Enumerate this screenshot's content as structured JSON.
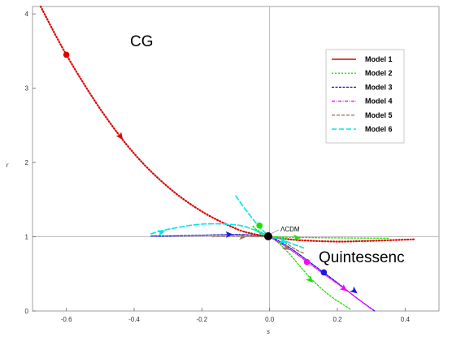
{
  "chart_data": {
    "type": "line",
    "xlabel": "s",
    "ylabel": "r",
    "xlim": [
      -0.7,
      0.5
    ],
    "ylim": [
      0,
      4.1
    ],
    "x_ticks": [
      "-0.6",
      "-0.4",
      "-0.2",
      "0.0",
      "0.2",
      "0.4"
    ],
    "x_tick_values": [
      -0.6,
      -0.4,
      -0.2,
      0.0,
      0.2,
      0.4
    ],
    "y_ticks": [
      "0",
      "1",
      "2",
      "3",
      "4"
    ],
    "y_tick_values": [
      0,
      1,
      2,
      3,
      4
    ],
    "reference_lines": {
      "x": 0,
      "y": 1
    },
    "grid": false,
    "legend_position": "top-right",
    "region_labels": [
      {
        "text": "CG",
        "x": -0.56,
        "y": 3.6
      },
      {
        "text": "Quintessenc",
        "x": 0.34,
        "y": 0.72
      }
    ],
    "fixed_point": {
      "label": "ΛCDM",
      "x": 0.0,
      "y": 1.0
    },
    "series": [
      {
        "name": "Model 1",
        "color": "#e00000",
        "dash": "1,2.5",
        "width": 2.2,
        "x": [
          -0.676,
          -0.6,
          -0.5,
          -0.4,
          -0.3,
          -0.2,
          -0.1,
          -0.05,
          0.0,
          0.05,
          0.1,
          0.2,
          0.3,
          0.43
        ],
        "y": [
          4.1,
          3.45,
          2.72,
          2.12,
          1.67,
          1.34,
          1.11,
          1.04,
          1.0,
          0.97,
          0.95,
          0.935,
          0.945,
          0.965
        ],
        "markers": [
          {
            "x": -0.6,
            "y": 3.45
          }
        ],
        "arrows": [
          {
            "x": -0.44,
            "y": 2.35
          }
        ]
      },
      {
        "name": "Model 2",
        "color": "#22dd00",
        "dash": "2,2",
        "width": 1.3,
        "x": [
          0.05,
          0.0,
          -0.03,
          -0.05,
          -0.04,
          0.0,
          0.03,
          0.06,
          0.09,
          0.13,
          0.18,
          0.24
        ],
        "y": [
          0.98,
          1.0,
          1.05,
          1.15,
          1.1,
          1.0,
          0.9,
          0.76,
          0.6,
          0.4,
          0.2,
          0.02
        ],
        "markers": [
          {
            "x": -0.03,
            "y": 1.15
          }
        ],
        "arrows": [
          {
            "x": 0.12,
            "y": 0.42
          }
        ],
        "tail": {
          "x": [
            0.0,
            0.1,
            0.2,
            0.35
          ],
          "y": [
            1.0,
            0.99,
            0.985,
            0.98
          ]
        },
        "tail_arrows": [
          {
            "x": 0.08,
            "y": 0.985
          }
        ]
      },
      {
        "name": "Model 3",
        "color": "#1a1adc",
        "dash": "3,1.5",
        "width": 1.3,
        "x": [
          -0.35,
          -0.3,
          -0.2,
          -0.1,
          -0.05,
          0.0,
          0.05,
          0.1,
          0.15,
          0.2,
          0.25,
          0.31
        ],
        "y": [
          1.01,
          1.01,
          1.02,
          1.03,
          1.02,
          1.0,
          0.88,
          0.72,
          0.55,
          0.38,
          0.2,
          0.0
        ],
        "markers": [
          {
            "x": 0.16,
            "y": 0.52
          }
        ],
        "arrows": [
          {
            "x": -0.12,
            "y": 1.03
          },
          {
            "x": 0.25,
            "y": 0.27
          }
        ]
      },
      {
        "name": "Model 4",
        "color": "#ff00ff",
        "dash": "4,1.5,1,1.5",
        "width": 1.3,
        "x": [
          0.0,
          0.05,
          0.1,
          0.15,
          0.2,
          0.25,
          0.3
        ],
        "y": [
          1.0,
          0.86,
          0.7,
          0.53,
          0.37,
          0.2,
          0.03
        ],
        "markers": [
          {
            "x": 0.11,
            "y": 0.66
          }
        ],
        "arrows": [
          {
            "x": 0.22,
            "y": 0.3
          }
        ]
      },
      {
        "name": "Model 5",
        "color": "#a0785a",
        "dash": "4,2",
        "width": 1.3,
        "x": [
          -0.17,
          -0.1,
          -0.05,
          0.0,
          0.03,
          0.06,
          0.08,
          0.1
        ],
        "y": [
          1.0,
          1.01,
          1.0,
          1.0,
          0.97,
          0.88,
          0.82,
          0.78
        ],
        "markers": [],
        "arrows": [
          {
            "x": -0.08,
            "y": 1.0
          },
          {
            "x": 0.05,
            "y": 0.85
          }
        ]
      },
      {
        "name": "Model 6",
        "color": "#00e6e6",
        "dash": "6,3",
        "width": 1.6,
        "x": [
          -0.35,
          -0.3,
          -0.2,
          -0.1,
          -0.05,
          0.0,
          0.03,
          0.07,
          0.1
        ],
        "y": [
          1.04,
          1.1,
          1.17,
          1.16,
          1.1,
          1.0,
          0.97,
          0.9,
          0.85
        ],
        "markers": [],
        "arrows": [
          {
            "x": -0.32,
            "y": 1.06
          },
          {
            "x": 0.04,
            "y": 0.94
          }
        ],
        "tail": {
          "x": [
            -0.1,
            -0.08,
            -0.06,
            -0.03,
            0.0
          ],
          "y": [
            1.55,
            1.42,
            1.3,
            1.13,
            1.0
          ]
        },
        "tail_arrows": []
      }
    ]
  }
}
